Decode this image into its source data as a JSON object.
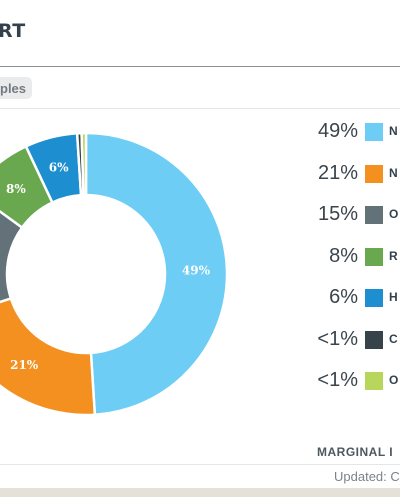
{
  "header": {
    "title": "RT"
  },
  "filter_chip": {
    "label": "ples"
  },
  "chart_data": {
    "type": "pie",
    "donut": true,
    "categories": [
      "N",
      "N",
      "O",
      "R",
      "H",
      "C",
      "O"
    ],
    "values": [
      49,
      21,
      15,
      8,
      6,
      0.5,
      0.5
    ],
    "slice_labels": [
      "49%",
      "21%",
      "",
      "8%",
      "6%",
      "",
      ""
    ],
    "legend_values": [
      "49%",
      "21%",
      "15%",
      "8%",
      "6%",
      "<1%",
      "<1%"
    ],
    "colors": [
      "#6dcdf5",
      "#f39020",
      "#637178",
      "#6aa84f",
      "#1d8fd0",
      "#37434a",
      "#b9d65c"
    ],
    "legend": "right"
  },
  "footer": {
    "marginal": "MARGINAL I",
    "updated": "Updated: C"
  }
}
